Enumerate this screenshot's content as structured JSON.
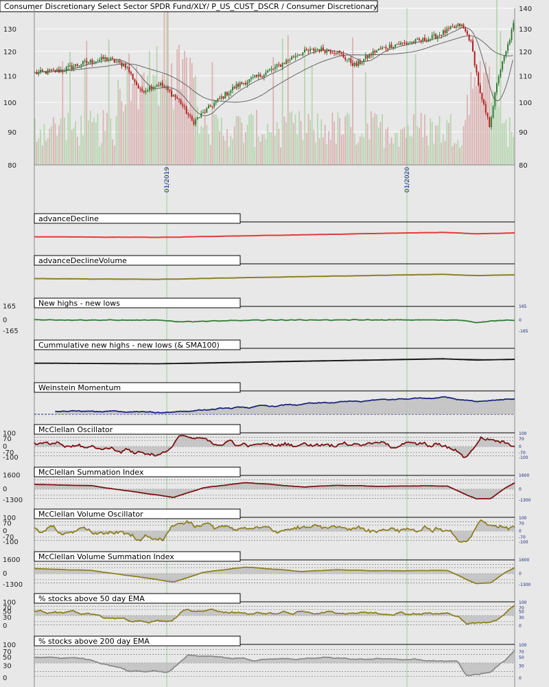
{
  "chart_data": [
    {
      "type": "candlestick",
      "title": "Consumer Discretionary Select Sector SPDR Fund/XLY/ P_US_CUST_DSCR / Consumer Discretionary",
      "y_ticks": [
        140,
        130,
        120,
        110,
        100,
        90,
        80
      ],
      "ylim": [
        80,
        140
      ],
      "scale": "log",
      "x_ticks": [
        "01/2019",
        "01/2020"
      ],
      "approx_close_path": [
        {
          "t": 0.0,
          "v": 111
        },
        {
          "t": 0.05,
          "v": 112
        },
        {
          "t": 0.1,
          "v": 115
        },
        {
          "t": 0.15,
          "v": 117
        },
        {
          "t": 0.19,
          "v": 114
        },
        {
          "t": 0.22,
          "v": 104
        },
        {
          "t": 0.26,
          "v": 107
        },
        {
          "t": 0.3,
          "v": 101
        },
        {
          "t": 0.33,
          "v": 93
        },
        {
          "t": 0.37,
          "v": 99
        },
        {
          "t": 0.42,
          "v": 106
        },
        {
          "t": 0.47,
          "v": 110
        },
        {
          "t": 0.51,
          "v": 114
        },
        {
          "t": 0.55,
          "v": 119
        },
        {
          "t": 0.59,
          "v": 121
        },
        {
          "t": 0.63,
          "v": 120
        },
        {
          "t": 0.67,
          "v": 114
        },
        {
          "t": 0.71,
          "v": 120
        },
        {
          "t": 0.75,
          "v": 123
        },
        {
          "t": 0.79,
          "v": 124
        },
        {
          "t": 0.83,
          "v": 126
        },
        {
          "t": 0.86,
          "v": 129
        },
        {
          "t": 0.89,
          "v": 132
        },
        {
          "t": 0.91,
          "v": 125
        },
        {
          "t": 0.93,
          "v": 103
        },
        {
          "t": 0.95,
          "v": 92
        },
        {
          "t": 0.97,
          "v": 111
        },
        {
          "t": 0.985,
          "v": 120
        },
        {
          "t": 1.0,
          "v": 132
        }
      ],
      "moving_averages": [
        "SMA50",
        "SMA200"
      ]
    },
    {
      "type": "line",
      "title": "advanceDecline",
      "color": "#e53935"
    },
    {
      "type": "line",
      "title": "advanceDeclineVolume",
      "color": "#8d7f22"
    },
    {
      "type": "line",
      "title": "New highs - new lows",
      "color": "#2e7d32",
      "y_ticks": [
        165,
        0,
        -165
      ]
    },
    {
      "type": "line",
      "title": "Cummulative new highs - new lows (& SMA100)",
      "color": "#111111"
    },
    {
      "type": "area",
      "title": "Weinstein Momentum",
      "color": "#1a237e"
    },
    {
      "type": "area",
      "title": "McClellan Oscillator",
      "color": "#7b1111",
      "y_ticks": [
        100,
        70,
        0,
        -70,
        -100
      ]
    },
    {
      "type": "area",
      "title": "McClellan Summation Index",
      "color": "#7b1111",
      "y_ticks": [
        1600,
        0,
        -1300
      ]
    },
    {
      "type": "area",
      "title": "McClellan Volume Oscillator",
      "color": "#8d7f22",
      "y_ticks": [
        100,
        70,
        0,
        -70,
        -100
      ]
    },
    {
      "type": "area",
      "title": "McClellan Volume Summation Index",
      "color": "#8d7f22",
      "y_ticks": [
        1600,
        0,
        -1300
      ]
    },
    {
      "type": "area",
      "title": "% stocks above 50 day EMA",
      "color": "#8d7f22",
      "y_ticks": [
        100,
        70,
        50,
        30,
        0
      ]
    },
    {
      "type": "area",
      "title": "% stocks above 200 day EMA",
      "color": "#8a8a8a",
      "y_ticks": [
        100,
        70,
        50,
        30,
        0
      ]
    }
  ]
}
